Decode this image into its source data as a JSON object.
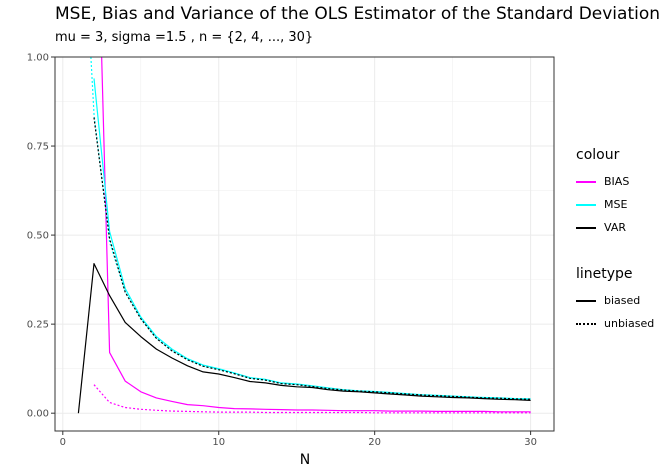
{
  "title": "MSE, Bias and Variance of the OLS Estimator of the Standard Deviation",
  "subtitle": "mu = 3, sigma =1.5 , n = {2, 4, ..., 30}",
  "legend_colour": {
    "title": "colour",
    "items": [
      {
        "label": "BIAS",
        "color": "#ff00ff"
      },
      {
        "label": "MSE",
        "color": "#00ffff"
      },
      {
        "label": "VAR",
        "color": "#000000"
      }
    ]
  },
  "legend_linetype": {
    "title": "linetype",
    "items": [
      {
        "label": "biased",
        "dash": "solid"
      },
      {
        "label": "unbiased",
        "dash": "dotted"
      }
    ]
  },
  "chart_data": {
    "type": "line",
    "title": "MSE, Bias and Variance of the OLS Estimator of the Standard Deviation",
    "subtitle": "mu = 3, sigma =1.5 , n = {2, 4, ..., 30}",
    "xlabel": "N",
    "ylabel": "",
    "xlim": [
      -0.5,
      31.5
    ],
    "ylim": [
      -0.05,
      1.0
    ],
    "x_ticks": [
      0,
      10,
      20,
      30
    ],
    "y_ticks": [
      0.0,
      0.25,
      0.5,
      0.75,
      1.0
    ],
    "y_tick_labels": [
      "0.00",
      "0.25",
      "0.50",
      "0.75",
      "1.00"
    ],
    "grid": true,
    "legend_position": "right",
    "series": [
      {
        "name": "BIAS",
        "linetype": "biased",
        "color": "#ff00ff",
        "x": [
          2,
          3,
          4,
          5,
          6,
          7,
          8,
          9,
          10,
          11,
          12,
          13,
          14,
          15,
          16,
          17,
          18,
          19,
          20,
          21,
          22,
          23,
          24,
          25,
          26,
          27,
          28,
          29,
          30
        ],
        "y": [
          1.8,
          0.17,
          0.09,
          0.06,
          0.043,
          0.033,
          0.024,
          0.021,
          0.016,
          0.013,
          0.012,
          0.011,
          0.01,
          0.009,
          0.009,
          0.008,
          0.007,
          0.007,
          0.007,
          0.006,
          0.006,
          0.006,
          0.005,
          0.005,
          0.005,
          0.005,
          0.004,
          0.004,
          0.004
        ]
      },
      {
        "name": "BIAS",
        "linetype": "unbiased",
        "color": "#ff00ff",
        "x": [
          2,
          3,
          4,
          5,
          6,
          7,
          8,
          9,
          10,
          11,
          12,
          13,
          14,
          15,
          16,
          17,
          18,
          19,
          20,
          21,
          22,
          23,
          24,
          25,
          26,
          27,
          28,
          29,
          30
        ],
        "y": [
          0.08,
          0.03,
          0.016,
          0.011,
          0.008,
          0.006,
          0.005,
          0.004,
          0.003,
          0.003,
          0.003,
          0.002,
          0.002,
          0.002,
          0.002,
          0.002,
          0.002,
          0.002,
          0.001,
          0.001,
          0.001,
          0.001,
          0.001,
          0.001,
          0.001,
          0.001,
          0.001,
          0.001,
          0.001
        ]
      },
      {
        "name": "MSE",
        "linetype": "biased",
        "color": "#00ffff",
        "x": [
          2,
          3,
          4,
          5,
          6,
          7,
          8,
          9,
          10,
          11,
          12,
          13,
          14,
          15,
          16,
          17,
          18,
          19,
          20,
          21,
          22,
          23,
          24,
          25,
          26,
          27,
          28,
          29,
          30
        ],
        "y": [
          0.94,
          0.51,
          0.35,
          0.27,
          0.215,
          0.18,
          0.153,
          0.135,
          0.125,
          0.113,
          0.1,
          0.095,
          0.085,
          0.082,
          0.077,
          0.071,
          0.066,
          0.063,
          0.061,
          0.058,
          0.055,
          0.052,
          0.05,
          0.048,
          0.046,
          0.044,
          0.043,
          0.041,
          0.04
        ]
      },
      {
        "name": "MSE",
        "linetype": "unbiased",
        "color": "#00ffff",
        "x": [
          1.8,
          2,
          3,
          4,
          5,
          6,
          7,
          8,
          9,
          10,
          11,
          12,
          13,
          14,
          15,
          16,
          17,
          18,
          19,
          20,
          21,
          22,
          23,
          24,
          25,
          26,
          27,
          28,
          29,
          30
        ],
        "y": [
          1.0,
          0.84,
          0.48,
          0.34,
          0.265,
          0.21,
          0.175,
          0.15,
          0.132,
          0.122,
          0.111,
          0.098,
          0.093,
          0.083,
          0.08,
          0.075,
          0.069,
          0.065,
          0.062,
          0.06,
          0.057,
          0.054,
          0.051,
          0.049,
          0.047,
          0.045,
          0.043,
          0.042,
          0.04,
          0.039
        ]
      },
      {
        "name": "VAR",
        "linetype": "biased",
        "color": "#000000",
        "x": [
          1,
          2,
          3,
          4,
          5,
          6,
          7,
          8,
          9,
          10,
          11,
          12,
          13,
          14,
          15,
          16,
          17,
          18,
          19,
          20,
          21,
          22,
          23,
          24,
          25,
          26,
          27,
          28,
          29,
          30
        ],
        "y": [
          0.0,
          0.42,
          0.33,
          0.255,
          0.215,
          0.18,
          0.155,
          0.133,
          0.116,
          0.11,
          0.1,
          0.089,
          0.085,
          0.078,
          0.074,
          0.072,
          0.066,
          0.062,
          0.06,
          0.057,
          0.054,
          0.051,
          0.048,
          0.046,
          0.044,
          0.043,
          0.041,
          0.039,
          0.038,
          0.036
        ]
      },
      {
        "name": "VAR",
        "linetype": "unbiased",
        "color": "#000000",
        "x": [
          2,
          3,
          4,
          5,
          6,
          7,
          8,
          9,
          10,
          11,
          12,
          13,
          14,
          15,
          16,
          17,
          18,
          19,
          20,
          21,
          22,
          23,
          24,
          25,
          26,
          27,
          28,
          29,
          30
        ],
        "y": [
          0.83,
          0.49,
          0.34,
          0.265,
          0.21,
          0.175,
          0.15,
          0.132,
          0.122,
          0.111,
          0.098,
          0.093,
          0.083,
          0.08,
          0.075,
          0.069,
          0.065,
          0.062,
          0.06,
          0.057,
          0.054,
          0.051,
          0.049,
          0.047,
          0.045,
          0.043,
          0.042,
          0.04,
          0.039
        ]
      }
    ]
  }
}
